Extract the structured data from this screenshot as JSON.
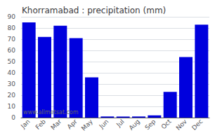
{
  "chart_data": {
    "type": "bar",
    "title": "Khorramabad : precipitation (mm)",
    "categories": [
      "Jan",
      "Feb",
      "Mar",
      "Apr",
      "May",
      "Jun",
      "Jul",
      "Aug",
      "Sep",
      "Oct",
      "Nov",
      "Dec"
    ],
    "values": [
      85,
      72,
      82,
      71,
      36,
      1,
      1,
      1,
      2,
      23,
      54,
      83
    ],
    "color": "#0000DD",
    "ylim": [
      0,
      90
    ],
    "yticks": [
      0,
      10,
      20,
      30,
      40,
      50,
      60,
      70,
      80,
      90
    ],
    "grid": true,
    "annotations": [
      "www.allmetsat.com"
    ]
  }
}
